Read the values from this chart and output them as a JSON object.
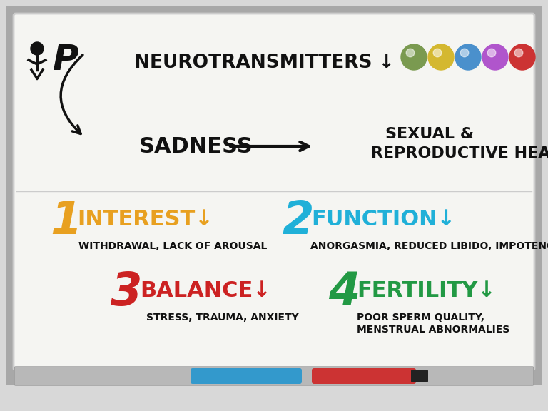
{
  "bg_color": "#d8d8d8",
  "board_color": "#f5f5f2",
  "board_frame_color": "#a0a0a0",
  "board_inner_color": "#888888",
  "title_neuro": "NEUROTRANSMITTERS ↓",
  "title_sadness": "SADNESS",
  "title_srh_line1": "SEXUAL &",
  "title_srh_line2": "REPRODUCTIVE HEALTH:-",
  "dots": [
    "#7a9a50",
    "#d4b830",
    "#4a90cc",
    "#b055cc",
    "#cc3333"
  ],
  "interest_num_color": "#e8a020",
  "interest_label_color": "#e8a020",
  "interest_sub_color": "#111111",
  "function_num_color": "#20b0d8",
  "function_label_color": "#20b0d8",
  "function_sub_color": "#111111",
  "balance_num_color": "#cc2222",
  "balance_label_color": "#cc2222",
  "balance_sub_color": "#111111",
  "fertility_num_color": "#229944",
  "fertility_label_color": "#229944",
  "fertility_sub_color": "#111111",
  "text_color": "#111111",
  "tray_color": "#b8b8b8",
  "marker1_color": "#3399cc",
  "marker2_color": "#cc3333",
  "marker_tip_color": "#222222"
}
